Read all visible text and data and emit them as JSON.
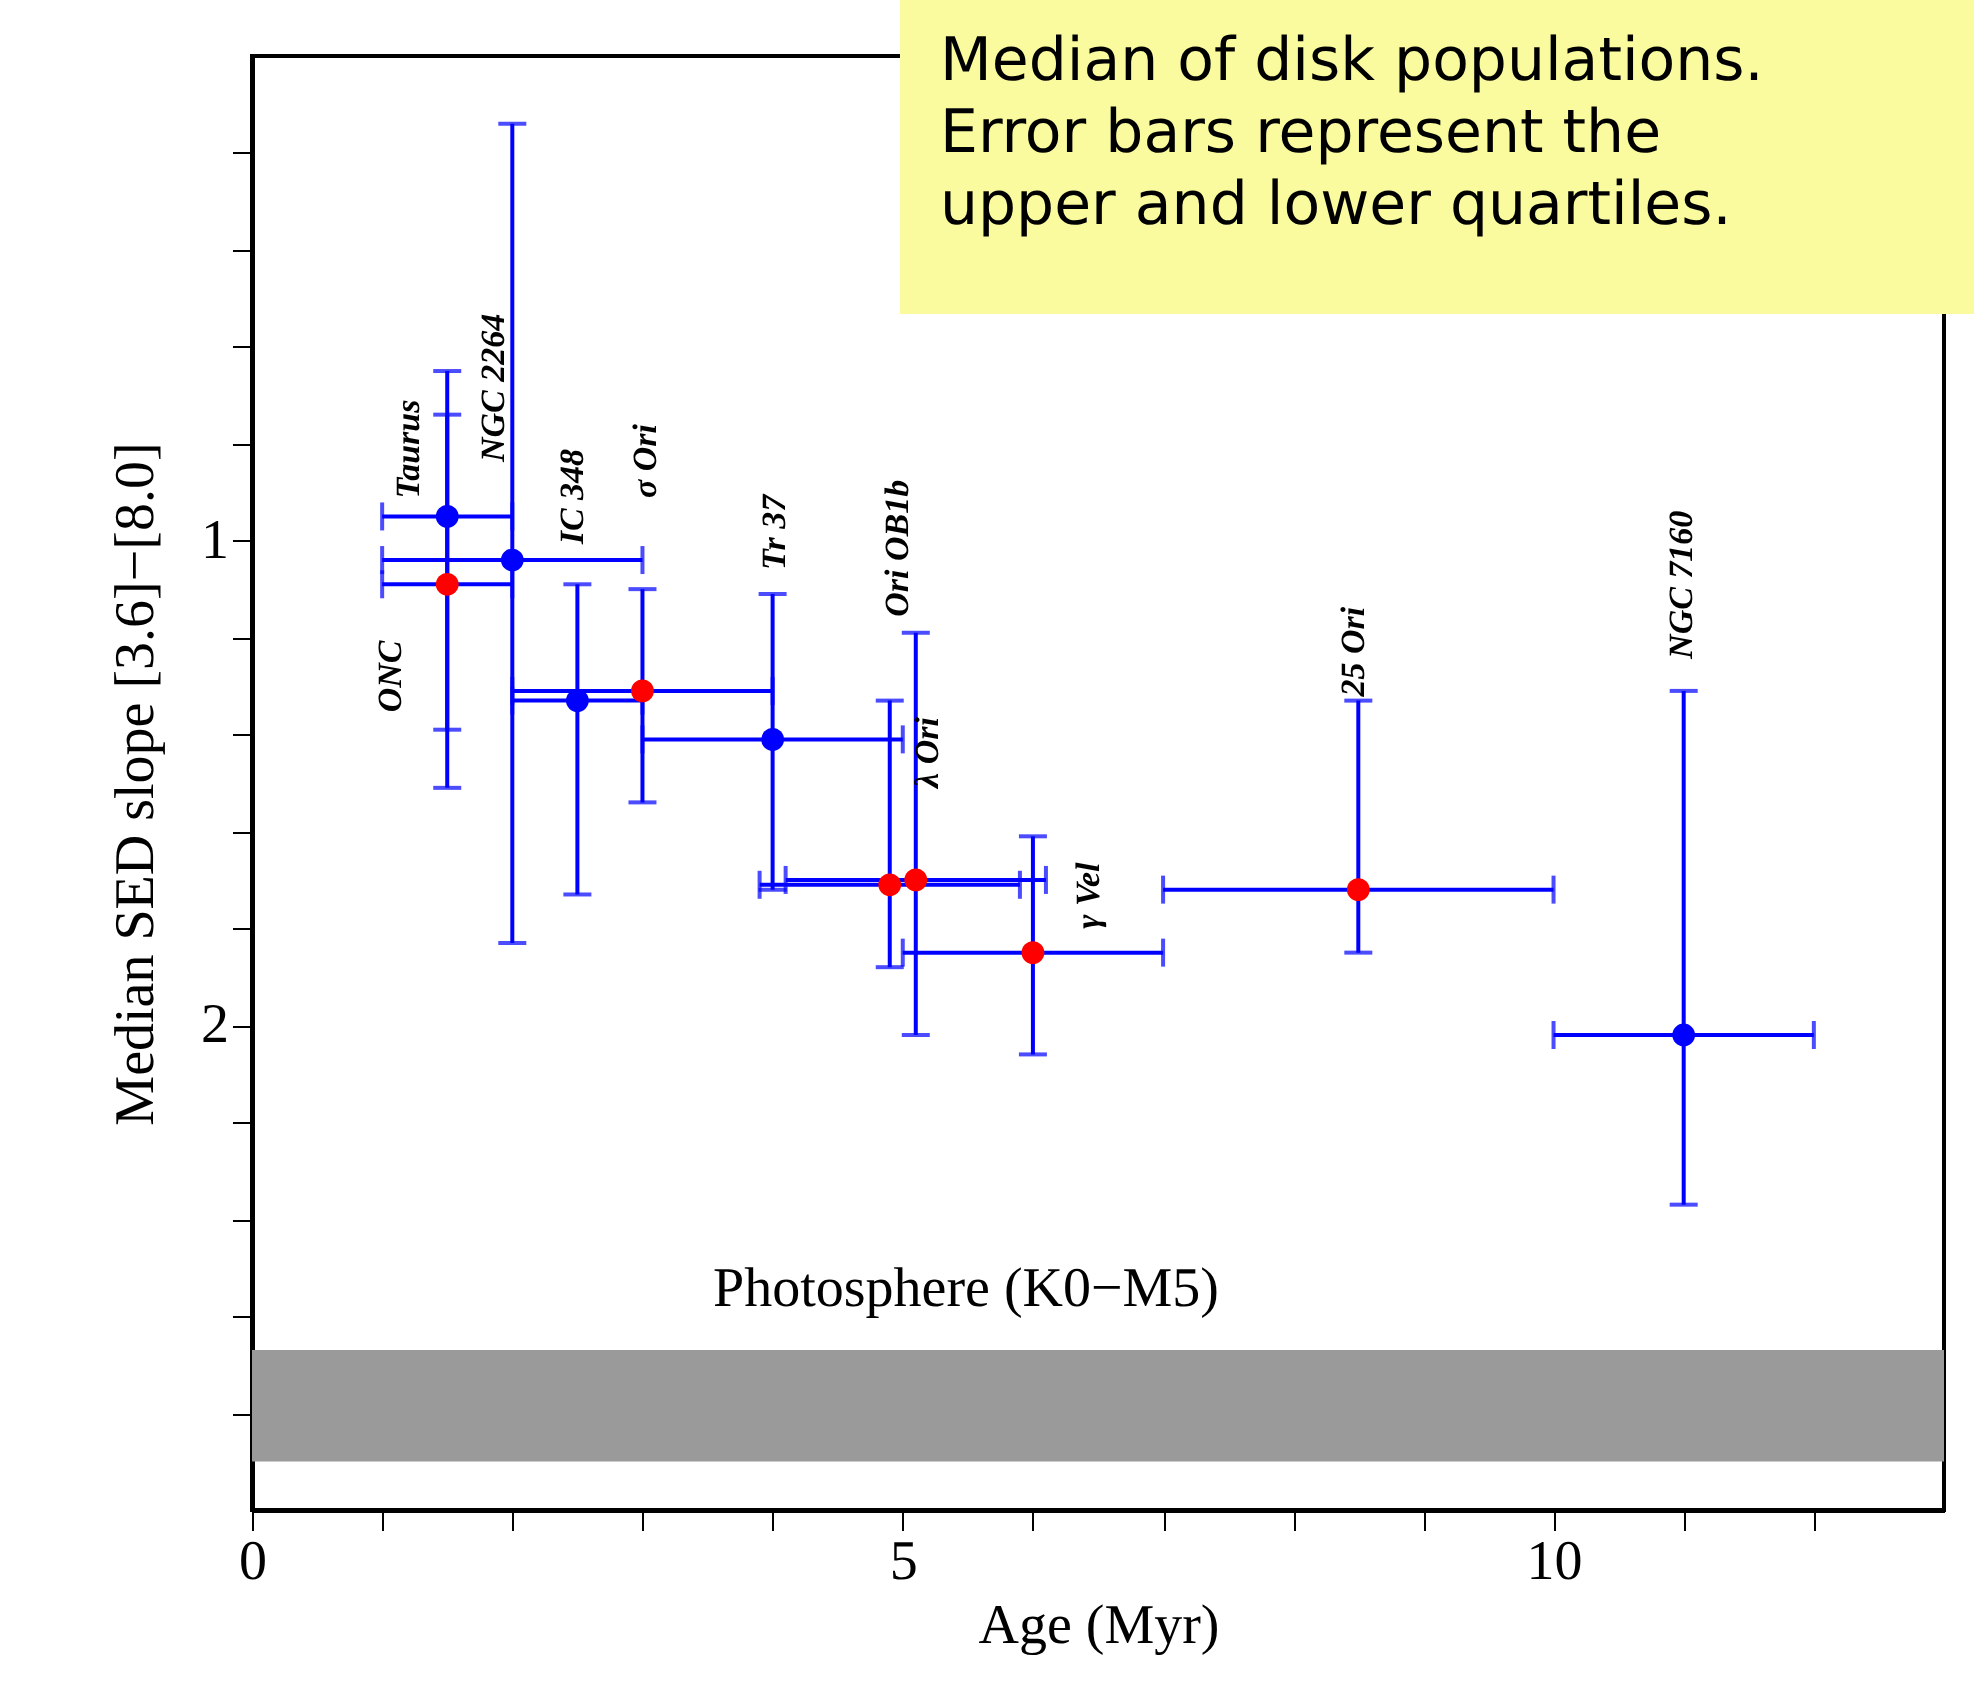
{
  "chart_data": {
    "type": "scatter",
    "xlabel": "Age (Myr)",
    "ylabel": "Median SED slope [3.6]−[8.0]",
    "xlim": [
      0,
      13
    ],
    "ylim": [
      3,
      0
    ],
    "xticks": [
      0,
      {
        "value": 1,
        "label": null
      },
      {
        "value": 2,
        "label": null
      },
      {
        "value": 3,
        "label": null
      },
      {
        "value": 4,
        "label": null
      },
      5,
      {
        "value": 6,
        "label": null
      },
      {
        "value": 7,
        "label": null
      },
      {
        "value": 8,
        "label": null
      },
      {
        "value": 9,
        "label": null
      },
      10,
      {
        "value": 11,
        "label": null
      },
      {
        "value": 12,
        "label": null
      }
    ],
    "yticks": [
      {
        "value": 0.2,
        "label": null
      },
      {
        "value": 0.4,
        "label": null
      },
      {
        "value": 0.6,
        "label": null
      },
      {
        "value": 0.8,
        "label": null
      },
      1,
      {
        "value": 1.2,
        "label": null
      },
      {
        "value": 1.4,
        "label": null
      },
      {
        "value": 1.6,
        "label": null
      },
      {
        "value": 1.8,
        "label": null
      },
      2,
      {
        "value": 2.2,
        "label": null
      },
      {
        "value": 2.4,
        "label": null
      },
      {
        "value": 2.6,
        "label": null
      },
      {
        "value": 2.8,
        "label": null
      }
    ],
    "grid": false,
    "legend": false,
    "marker": "circle",
    "series": [
      {
        "color": "#0000ff",
        "x": [
          1.5,
          2,
          2.5,
          4,
          11
        ],
        "values": [
          0.95,
          1.04,
          1.33,
          1.41,
          2.02
        ],
        "errors": [
          [
            0.74,
            1.39
          ],
          [
            0.14,
            1.83
          ],
          [
            1.09,
            1.73
          ],
          [
            1.11,
            1.72
          ],
          [
            1.31,
            2.37
          ]
        ],
        "xerrors": [
          [
            1,
            2
          ],
          [
            1,
            3
          ],
          [
            2,
            3
          ],
          [
            3,
            5
          ],
          [
            10,
            12
          ]
        ]
      },
      {
        "color": "#ff0000",
        "x": [
          1.5,
          3,
          4.9,
          5.1,
          6,
          8.5
        ],
        "values": [
          1.09,
          1.31,
          1.71,
          1.7,
          1.85,
          1.72
        ],
        "errors": [
          [
            0.65,
            1.51
          ],
          [
            1.1,
            1.54
          ],
          [
            1.33,
            1.88
          ],
          [
            1.19,
            2.02
          ],
          [
            1.61,
            2.06
          ],
          [
            1.33,
            1.85
          ]
        ],
        "xerrors": [
          [
            1,
            2
          ],
          [
            2,
            4
          ],
          [
            3.9,
            5.9
          ],
          [
            4.1,
            6.1
          ],
          [
            5,
            7
          ],
          [
            7,
            10
          ]
        ]
      }
    ],
    "bands": [
      {
        "axis": "y",
        "from": 2.67,
        "to": 2.9,
        "label": "Photosphere (K0−M5)",
        "color": "#9a9a9a"
      }
    ],
    "annotations": [
      {
        "text": "ONC",
        "x": 1.5,
        "y": 1.09
      },
      {
        "text": "Taurus",
        "x": 1.5,
        "y": 0.95
      },
      {
        "text": "NGC 2264",
        "x": 2,
        "y": 1.04
      },
      {
        "text": "IC 348",
        "x": 2.5,
        "y": 1.09
      },
      {
        "text": "σ Ori",
        "x": 3,
        "y": 1.04
      },
      {
        "text": "Tr 37",
        "x": 4,
        "y": 1.11
      },
      {
        "text": "Ori OB1b",
        "x": 5.1,
        "y": 1.19
      },
      {
        "text": "λ Ori",
        "x": 5.1,
        "y": 1.7
      },
      {
        "text": "γ Vel",
        "x": 6,
        "y": 1.85
      },
      {
        "text": "25 Ori",
        "x": 8.5,
        "y": 1.33
      },
      {
        "text": "NGC 7160",
        "x": 11,
        "y": 1.31
      },
      "Median of disk populations.\nError bars represent the\nupper and lower quartiles."
    ]
  }
}
